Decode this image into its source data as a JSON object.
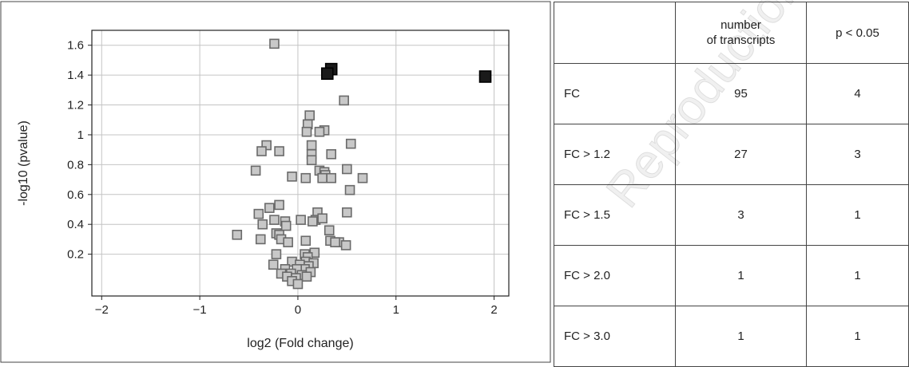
{
  "chart_data": {
    "type": "scatter",
    "xlabel": "log2 (Fold change)",
    "ylabel": "-log10 (pvalue)",
    "xlim": [
      -2.1,
      2.15
    ],
    "ylim": [
      -0.08,
      1.7
    ],
    "xticks": [
      -2,
      -1,
      0,
      1,
      2
    ],
    "xtick_labels": [
      "−2",
      "−1",
      "0",
      "1",
      "2"
    ],
    "yticks": [
      0.2,
      0.4,
      0.6,
      0.8,
      1.0,
      1.2,
      1.4,
      1.6
    ],
    "ytick_labels": [
      "0.2",
      "0.4",
      "0.6",
      "0.8",
      "1",
      "1.2",
      "1.4",
      "1.6"
    ],
    "grid": true,
    "series": [
      {
        "marker": "square",
        "color": "#c8c8c8",
        "edge_color": "#6a6a6a",
        "points": [
          [
            -0.24,
            1.61
          ],
          [
            0.47,
            1.23
          ],
          [
            0.12,
            1.13
          ],
          [
            0.27,
            1.03
          ],
          [
            0.1,
            1.07
          ],
          [
            0.22,
            1.02
          ],
          [
            0.09,
            1.02
          ],
          [
            0.14,
            0.93
          ],
          [
            0.54,
            0.94
          ],
          [
            -0.32,
            0.93
          ],
          [
            -0.37,
            0.89
          ],
          [
            -0.19,
            0.89
          ],
          [
            0.14,
            0.87
          ],
          [
            0.34,
            0.87
          ],
          [
            0.14,
            0.83
          ],
          [
            -0.43,
            0.76
          ],
          [
            0.5,
            0.77
          ],
          [
            0.22,
            0.76
          ],
          [
            0.27,
            0.75
          ],
          [
            0.28,
            0.73
          ],
          [
            0.25,
            0.71
          ],
          [
            0.34,
            0.71
          ],
          [
            -0.06,
            0.72
          ],
          [
            0.08,
            0.71
          ],
          [
            0.66,
            0.71
          ],
          [
            0.53,
            0.63
          ],
          [
            -0.19,
            0.53
          ],
          [
            -0.29,
            0.51
          ],
          [
            -0.4,
            0.47
          ],
          [
            0.5,
            0.48
          ],
          [
            0.2,
            0.48
          ],
          [
            0.18,
            0.43
          ],
          [
            0.25,
            0.44
          ],
          [
            -0.24,
            0.43
          ],
          [
            -0.13,
            0.42
          ],
          [
            0.03,
            0.43
          ],
          [
            0.15,
            0.42
          ],
          [
            -0.36,
            0.4
          ],
          [
            -0.12,
            0.39
          ],
          [
            0.32,
            0.36
          ],
          [
            -0.62,
            0.33
          ],
          [
            -0.22,
            0.34
          ],
          [
            -0.19,
            0.33
          ],
          [
            -0.38,
            0.3
          ],
          [
            -0.17,
            0.3
          ],
          [
            -0.1,
            0.28
          ],
          [
            0.08,
            0.29
          ],
          [
            0.33,
            0.29
          ],
          [
            0.42,
            0.28
          ],
          [
            0.38,
            0.28
          ],
          [
            0.49,
            0.26
          ],
          [
            -0.22,
            0.2
          ],
          [
            0.07,
            0.2
          ],
          [
            0.17,
            0.21
          ],
          [
            0.1,
            0.18
          ],
          [
            -0.25,
            0.13
          ],
          [
            0.08,
            0.15
          ],
          [
            -0.06,
            0.15
          ],
          [
            0.02,
            0.13
          ],
          [
            0.16,
            0.14
          ],
          [
            0.11,
            0.12
          ],
          [
            -0.13,
            0.1
          ],
          [
            0.07,
            0.1
          ],
          [
            -0.01,
            0.1
          ],
          [
            0.13,
            0.08
          ],
          [
            -0.17,
            0.07
          ],
          [
            -0.07,
            0.07
          ],
          [
            0.04,
            0.06
          ],
          [
            -0.11,
            0.05
          ],
          [
            0.09,
            0.05
          ],
          [
            -0.02,
            0.04
          ],
          [
            -0.06,
            0.02
          ],
          [
            0.0,
            0.0
          ]
        ]
      },
      {
        "marker": "square",
        "color": "#1a1a1a",
        "edge_color": "#000000",
        "points": [
          [
            0.34,
            1.44
          ],
          [
            0.3,
            1.41
          ],
          [
            1.91,
            1.39
          ]
        ]
      }
    ]
  },
  "table": {
    "headers": [
      "",
      "number of transcripts",
      "p < 0.05"
    ],
    "header_lines": [
      "number",
      "of transcripts"
    ],
    "rows": [
      {
        "label": "FC",
        "count": "95",
        "significant": "4"
      },
      {
        "label": "FC > 1.2",
        "count": "27",
        "significant": "3"
      },
      {
        "label": "FC > 1.5",
        "count": "3",
        "significant": "1"
      },
      {
        "label": "FC > 2.0",
        "count": "1",
        "significant": "1"
      },
      {
        "label": "FC > 3.0",
        "count": "1",
        "significant": "1"
      }
    ]
  },
  "watermark": "Reproduction prohibited"
}
